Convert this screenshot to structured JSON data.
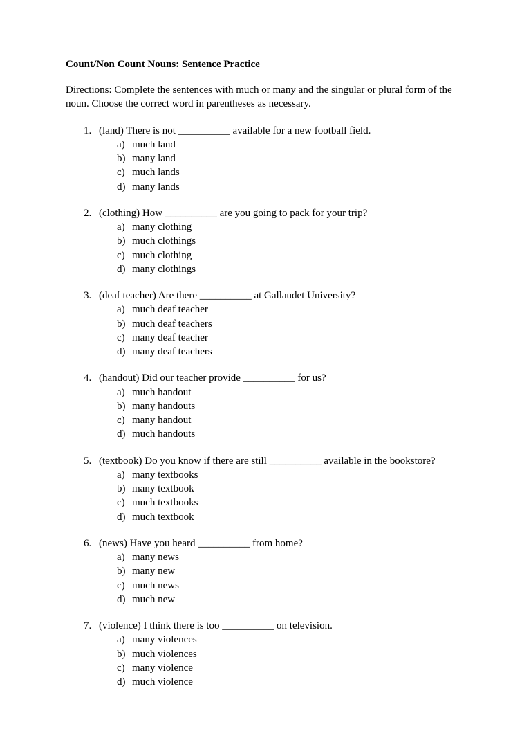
{
  "title": "Count/Non Count Nouns: Sentence Practice",
  "directions": "Directions: Complete the sentences with much or many and the singular or plural form of the noun. Choose the correct word in parentheses as necessary.",
  "questions": [
    {
      "num": "1.",
      "text": "(land) There is not __________ available for a new football field.",
      "options": [
        {
          "l": "a)",
          "t": "much land"
        },
        {
          "l": "b)",
          "t": "many land"
        },
        {
          "l": "c)",
          "t": "much lands"
        },
        {
          "l": "d)",
          "t": "many lands"
        }
      ]
    },
    {
      "num": "2.",
      "text": "(clothing) How __________ are you going to pack for your trip?",
      "options": [
        {
          "l": "a)",
          "t": "many clothing"
        },
        {
          "l": "b)",
          "t": "much clothings"
        },
        {
          "l": "c)",
          "t": "much clothing"
        },
        {
          "l": "d)",
          "t": "many clothings"
        }
      ]
    },
    {
      "num": "3.",
      "text": "(deaf teacher) Are there __________ at Gallaudet University?",
      "options": [
        {
          "l": "a)",
          "t": "much deaf teacher"
        },
        {
          "l": "b)",
          "t": "much deaf teachers"
        },
        {
          "l": "c)",
          "t": "many deaf teacher"
        },
        {
          "l": "d)",
          "t": "many deaf teachers"
        }
      ]
    },
    {
      "num": "4.",
      "text": "(handout) Did our teacher provide __________ for us?",
      "options": [
        {
          "l": "a)",
          "t": "much handout"
        },
        {
          "l": "b)",
          "t": "many handouts"
        },
        {
          "l": "c)",
          "t": "many handout"
        },
        {
          "l": "d)",
          "t": "much handouts"
        }
      ]
    },
    {
      "num": "5.",
      "text": "(textbook) Do you know if there are still __________ available in the bookstore?",
      "options": [
        {
          "l": "a)",
          "t": "many textbooks"
        },
        {
          "l": "b)",
          "t": "many textbook"
        },
        {
          "l": "c)",
          "t": "much textbooks"
        },
        {
          "l": "d)",
          "t": "much textbook"
        }
      ]
    },
    {
      "num": "6.",
      "text": "(news) Have you heard __________ from home?",
      "options": [
        {
          "l": "a)",
          "t": "many news"
        },
        {
          "l": "b)",
          "t": "many new"
        },
        {
          "l": "c)",
          "t": "much news"
        },
        {
          "l": "d)",
          "t": "much new"
        }
      ]
    },
    {
      "num": "7.",
      "text": "(violence) I think there is too __________ on television.",
      "options": [
        {
          "l": "a)",
          "t": "many violences"
        },
        {
          "l": "b)",
          "t": "much violences"
        },
        {
          "l": "c)",
          "t": "many violence"
        },
        {
          "l": "d)",
          "t": "much violence"
        }
      ]
    }
  ]
}
